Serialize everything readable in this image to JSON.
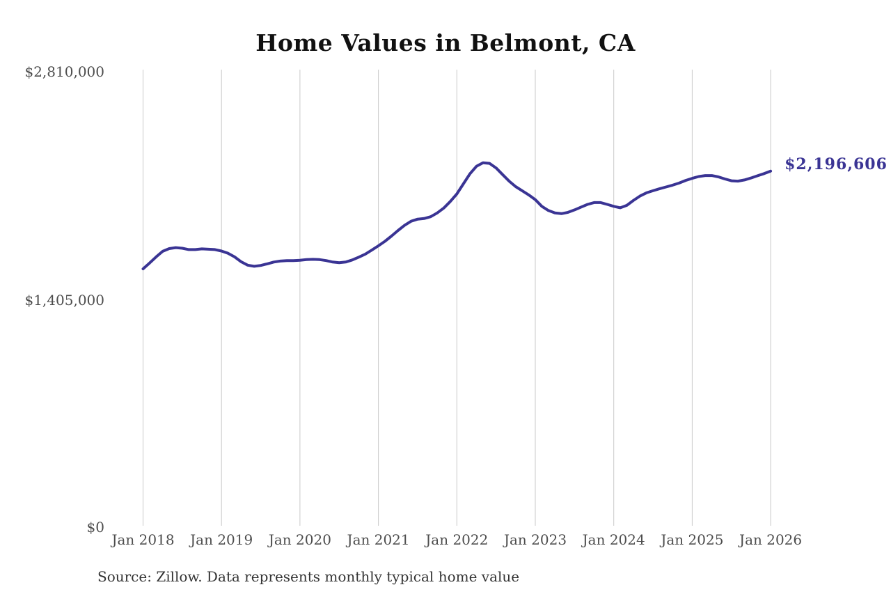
{
  "chart": {
    "title": "Home Values in Belmont, CA",
    "end_label": "$2,196,606",
    "source": "Source: Zillow. Data represents monthly typical home value"
  },
  "colors": {
    "line": "#3A3494",
    "end_label_text": "#3A3494",
    "grid": "#C9C9C9",
    "tick_text": "#4D4D4D",
    "source_text": "#333333",
    "title_text": "#111111",
    "background": "#FFFFFF"
  },
  "chart_data": {
    "type": "line",
    "title": "Home Values in Belmont, CA",
    "x_start": "2018-01",
    "x_frequency": "monthly",
    "x_ticks": [
      "Jan 2018",
      "Jan 2019",
      "Jan 2020",
      "Jan 2021",
      "Jan 2022",
      "Jan 2023",
      "Jan 2024",
      "Jan 2025",
      "Jan 2026"
    ],
    "y_ticks": [
      {
        "label": "$0",
        "value": 0
      },
      {
        "label": "$1,405,000",
        "value": 1405000
      },
      {
        "label": "$2,810,000",
        "value": 2810000
      }
    ],
    "ylim": [
      0,
      2810000
    ],
    "grid": "vertical-only",
    "legend": "none",
    "end_value": 2196606,
    "end_value_label": "$2,196,606",
    "series": [
      {
        "name": "Monthly typical home value",
        "values": [
          1595000,
          1631000,
          1669000,
          1703000,
          1720000,
          1726000,
          1722000,
          1714000,
          1714000,
          1718000,
          1716000,
          1714000,
          1705000,
          1691000,
          1669000,
          1639000,
          1618000,
          1611000,
          1616000,
          1626000,
          1637000,
          1643000,
          1646000,
          1646000,
          1648000,
          1652000,
          1654000,
          1652000,
          1646000,
          1637000,
          1633000,
          1637000,
          1650000,
          1667000,
          1686000,
          1711000,
          1737000,
          1765000,
          1797000,
          1831000,
          1863000,
          1888000,
          1901000,
          1905000,
          1916000,
          1939000,
          1969000,
          2010000,
          2056000,
          2118000,
          2180000,
          2226000,
          2248000,
          2244000,
          2216000,
          2175000,
          2135000,
          2101000,
          2076000,
          2050000,
          2021000,
          1980000,
          1954000,
          1939000,
          1935000,
          1943000,
          1958000,
          1975000,
          1992000,
          2003000,
          2003000,
          1992000,
          1980000,
          1971000,
          1986000,
          2016000,
          2043000,
          2063000,
          2076000,
          2088000,
          2099000,
          2110000,
          2123000,
          2139000,
          2152000,
          2163000,
          2169000,
          2169000,
          2161000,
          2148000,
          2137000,
          2135000,
          2142000,
          2154000,
          2168000,
          2181000,
          2196606
        ]
      }
    ]
  }
}
